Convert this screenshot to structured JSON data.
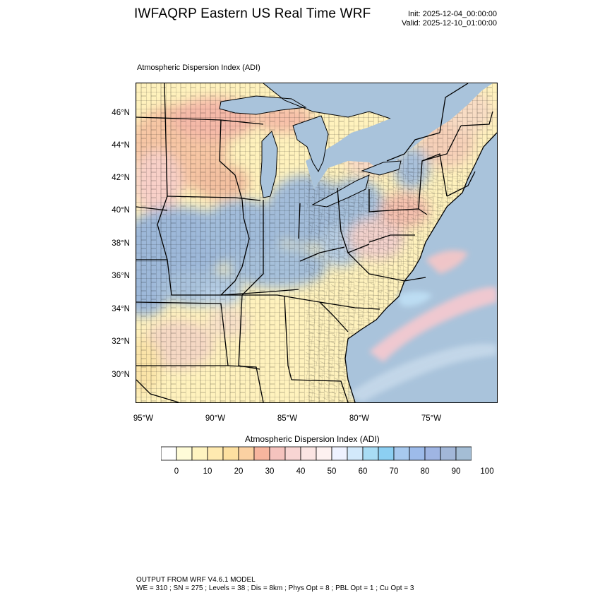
{
  "header": {
    "title": "IWFAQRP Eastern US Real Time WRF",
    "init": "Init: 2025-12-04_00:00:00",
    "valid": "Valid: 2025-12-10_01:00:00"
  },
  "panel": {
    "title": "Atmospheric Dispersion Index   (ADI)"
  },
  "axes": {
    "lat_labels": [
      "46°N",
      "44°N",
      "42°N",
      "40°N",
      "38°N",
      "36°N",
      "34°N",
      "32°N",
      "30°N"
    ],
    "lon_labels": [
      "95°W",
      "90°W",
      "85°W",
      "80°W",
      "75°W"
    ]
  },
  "colorbar": {
    "title": "Atmospheric Dispersion Index  (ADI)",
    "labels": [
      "0",
      "10",
      "20",
      "30",
      "40",
      "50",
      "60",
      "70",
      "80",
      "90",
      "100"
    ],
    "colors": [
      "#ffffff",
      "#fffcd8",
      "#fff4c0",
      "#ffeab0",
      "#fde0a0",
      "#fbd1a2",
      "#f7b59e",
      "#f5c3be",
      "#f8d5d3",
      "#fbe5e3",
      "#fdf1f0",
      "#eef2ff",
      "#d2e9fb",
      "#a8dcf4",
      "#8ccff2",
      "#a7c9ee",
      "#9dbbea",
      "#9fb5e3",
      "#a2b7d8",
      "#a4bdd5"
    ]
  },
  "footer": {
    "line1": "OUTPUT FROM WRF V4.6.1 MODEL",
    "line2": "WE = 310 ; SN = 275 ; Levels = 38 ; Dis = 8km ; Phys Opt = 8 ; PBL Opt = 1 ; Cu Opt = 3"
  }
}
